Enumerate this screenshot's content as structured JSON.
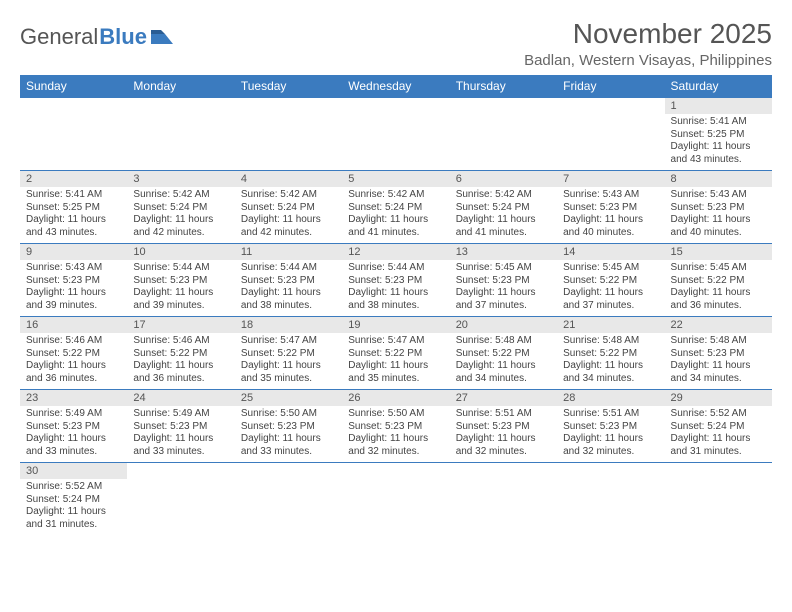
{
  "logo": {
    "part1": "General",
    "part2": "Blue"
  },
  "title": "November 2025",
  "location": "Badlan, Western Visayas, Philippines",
  "colors": {
    "header_bg": "#3b7bbf",
    "header_fg": "#ffffff",
    "daynum_bg": "#e8e8e8",
    "border": "#3b7bbf"
  },
  "weekdays": [
    "Sunday",
    "Monday",
    "Tuesday",
    "Wednesday",
    "Thursday",
    "Friday",
    "Saturday"
  ],
  "weeks": [
    [
      null,
      null,
      null,
      null,
      null,
      null,
      {
        "n": "1",
        "sr": "Sunrise: 5:41 AM",
        "ss": "Sunset: 5:25 PM",
        "d1": "Daylight: 11 hours",
        "d2": "and 43 minutes."
      }
    ],
    [
      {
        "n": "2",
        "sr": "Sunrise: 5:41 AM",
        "ss": "Sunset: 5:25 PM",
        "d1": "Daylight: 11 hours",
        "d2": "and 43 minutes."
      },
      {
        "n": "3",
        "sr": "Sunrise: 5:42 AM",
        "ss": "Sunset: 5:24 PM",
        "d1": "Daylight: 11 hours",
        "d2": "and 42 minutes."
      },
      {
        "n": "4",
        "sr": "Sunrise: 5:42 AM",
        "ss": "Sunset: 5:24 PM",
        "d1": "Daylight: 11 hours",
        "d2": "and 42 minutes."
      },
      {
        "n": "5",
        "sr": "Sunrise: 5:42 AM",
        "ss": "Sunset: 5:24 PM",
        "d1": "Daylight: 11 hours",
        "d2": "and 41 minutes."
      },
      {
        "n": "6",
        "sr": "Sunrise: 5:42 AM",
        "ss": "Sunset: 5:24 PM",
        "d1": "Daylight: 11 hours",
        "d2": "and 41 minutes."
      },
      {
        "n": "7",
        "sr": "Sunrise: 5:43 AM",
        "ss": "Sunset: 5:23 PM",
        "d1": "Daylight: 11 hours",
        "d2": "and 40 minutes."
      },
      {
        "n": "8",
        "sr": "Sunrise: 5:43 AM",
        "ss": "Sunset: 5:23 PM",
        "d1": "Daylight: 11 hours",
        "d2": "and 40 minutes."
      }
    ],
    [
      {
        "n": "9",
        "sr": "Sunrise: 5:43 AM",
        "ss": "Sunset: 5:23 PM",
        "d1": "Daylight: 11 hours",
        "d2": "and 39 minutes."
      },
      {
        "n": "10",
        "sr": "Sunrise: 5:44 AM",
        "ss": "Sunset: 5:23 PM",
        "d1": "Daylight: 11 hours",
        "d2": "and 39 minutes."
      },
      {
        "n": "11",
        "sr": "Sunrise: 5:44 AM",
        "ss": "Sunset: 5:23 PM",
        "d1": "Daylight: 11 hours",
        "d2": "and 38 minutes."
      },
      {
        "n": "12",
        "sr": "Sunrise: 5:44 AM",
        "ss": "Sunset: 5:23 PM",
        "d1": "Daylight: 11 hours",
        "d2": "and 38 minutes."
      },
      {
        "n": "13",
        "sr": "Sunrise: 5:45 AM",
        "ss": "Sunset: 5:23 PM",
        "d1": "Daylight: 11 hours",
        "d2": "and 37 minutes."
      },
      {
        "n": "14",
        "sr": "Sunrise: 5:45 AM",
        "ss": "Sunset: 5:22 PM",
        "d1": "Daylight: 11 hours",
        "d2": "and 37 minutes."
      },
      {
        "n": "15",
        "sr": "Sunrise: 5:45 AM",
        "ss": "Sunset: 5:22 PM",
        "d1": "Daylight: 11 hours",
        "d2": "and 36 minutes."
      }
    ],
    [
      {
        "n": "16",
        "sr": "Sunrise: 5:46 AM",
        "ss": "Sunset: 5:22 PM",
        "d1": "Daylight: 11 hours",
        "d2": "and 36 minutes."
      },
      {
        "n": "17",
        "sr": "Sunrise: 5:46 AM",
        "ss": "Sunset: 5:22 PM",
        "d1": "Daylight: 11 hours",
        "d2": "and 36 minutes."
      },
      {
        "n": "18",
        "sr": "Sunrise: 5:47 AM",
        "ss": "Sunset: 5:22 PM",
        "d1": "Daylight: 11 hours",
        "d2": "and 35 minutes."
      },
      {
        "n": "19",
        "sr": "Sunrise: 5:47 AM",
        "ss": "Sunset: 5:22 PM",
        "d1": "Daylight: 11 hours",
        "d2": "and 35 minutes."
      },
      {
        "n": "20",
        "sr": "Sunrise: 5:48 AM",
        "ss": "Sunset: 5:22 PM",
        "d1": "Daylight: 11 hours",
        "d2": "and 34 minutes."
      },
      {
        "n": "21",
        "sr": "Sunrise: 5:48 AM",
        "ss": "Sunset: 5:22 PM",
        "d1": "Daylight: 11 hours",
        "d2": "and 34 minutes."
      },
      {
        "n": "22",
        "sr": "Sunrise: 5:48 AM",
        "ss": "Sunset: 5:23 PM",
        "d1": "Daylight: 11 hours",
        "d2": "and 34 minutes."
      }
    ],
    [
      {
        "n": "23",
        "sr": "Sunrise: 5:49 AM",
        "ss": "Sunset: 5:23 PM",
        "d1": "Daylight: 11 hours",
        "d2": "and 33 minutes."
      },
      {
        "n": "24",
        "sr": "Sunrise: 5:49 AM",
        "ss": "Sunset: 5:23 PM",
        "d1": "Daylight: 11 hours",
        "d2": "and 33 minutes."
      },
      {
        "n": "25",
        "sr": "Sunrise: 5:50 AM",
        "ss": "Sunset: 5:23 PM",
        "d1": "Daylight: 11 hours",
        "d2": "and 33 minutes."
      },
      {
        "n": "26",
        "sr": "Sunrise: 5:50 AM",
        "ss": "Sunset: 5:23 PM",
        "d1": "Daylight: 11 hours",
        "d2": "and 32 minutes."
      },
      {
        "n": "27",
        "sr": "Sunrise: 5:51 AM",
        "ss": "Sunset: 5:23 PM",
        "d1": "Daylight: 11 hours",
        "d2": "and 32 minutes."
      },
      {
        "n": "28",
        "sr": "Sunrise: 5:51 AM",
        "ss": "Sunset: 5:23 PM",
        "d1": "Daylight: 11 hours",
        "d2": "and 32 minutes."
      },
      {
        "n": "29",
        "sr": "Sunrise: 5:52 AM",
        "ss": "Sunset: 5:24 PM",
        "d1": "Daylight: 11 hours",
        "d2": "and 31 minutes."
      }
    ],
    [
      {
        "n": "30",
        "sr": "Sunrise: 5:52 AM",
        "ss": "Sunset: 5:24 PM",
        "d1": "Daylight: 11 hours",
        "d2": "and 31 minutes."
      },
      null,
      null,
      null,
      null,
      null,
      null
    ]
  ]
}
